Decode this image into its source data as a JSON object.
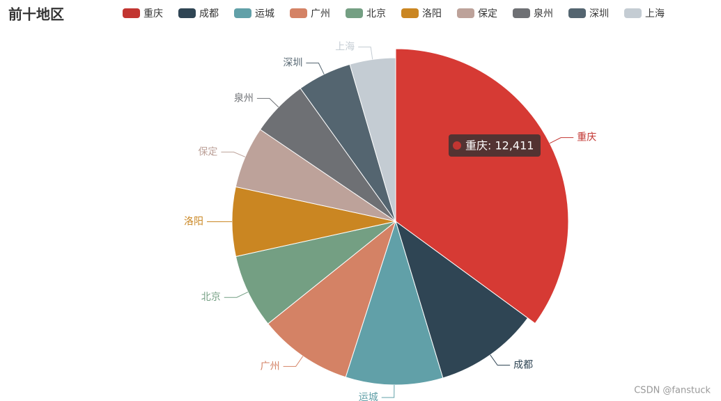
{
  "chart_data": {
    "type": "pie",
    "title": "前十地区",
    "categories": [
      "重庆",
      "成都",
      "运城",
      "广州",
      "北京",
      "洛阳",
      "保定",
      "泉州",
      "深圳",
      "上海"
    ],
    "values": [
      12411,
      3640,
      3400,
      3290,
      2590,
      2420,
      2160,
      1990,
      1900,
      1600
    ],
    "colors": [
      "#c23531",
      "#2f4554",
      "#61a0a8",
      "#d48265",
      "#749f83",
      "#ca8622",
      "#bda29a",
      "#6e7074",
      "#546570",
      "#c4ccd3"
    ],
    "legend": "top",
    "tooltip": "重庆: 12,411",
    "watermark": "CSDN @fanstuck"
  }
}
